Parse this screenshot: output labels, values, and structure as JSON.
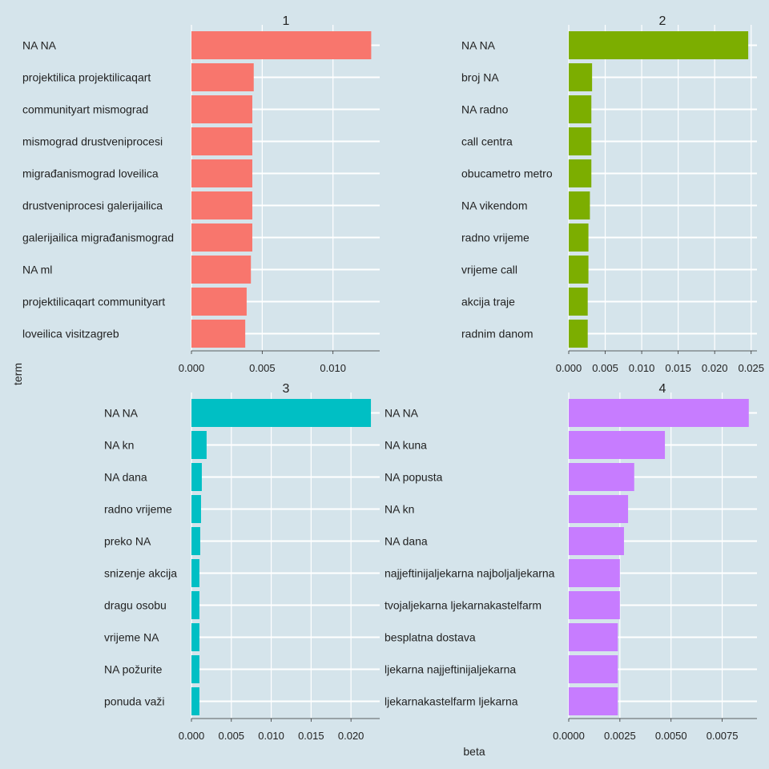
{
  "figure": {
    "xlabel": "beta",
    "ylabel": "term",
    "background": "#d5e4eb",
    "grid_color": "#ffffff"
  },
  "chart_data": [
    {
      "type": "bar",
      "orientation": "horizontal",
      "title": "1",
      "color": "#f8766d",
      "xlim": [
        0,
        0.0133
      ],
      "xticks": [
        0,
        0.005,
        0.01
      ],
      "xtick_labels": [
        "0.000",
        "0.005",
        "0.010"
      ],
      "categories": [
        "NA NA",
        "projektilica projektilicaqart",
        "communityart mismograd",
        "mismograd drustveniprocesi",
        "migrađanismograd loveilica",
        "drustveniprocesi galerijailica",
        "galerijailica migrađanismograd",
        "NA ml",
        "projektilicaqart communityart",
        "loveilica visitzagreb"
      ],
      "values": [
        0.0127,
        0.0044,
        0.0043,
        0.0043,
        0.0043,
        0.0043,
        0.0043,
        0.0042,
        0.0039,
        0.0038
      ]
    },
    {
      "type": "bar",
      "orientation": "horizontal",
      "title": "2",
      "color": "#7cae00",
      "xlim": [
        0,
        0.0258
      ],
      "xticks": [
        0,
        0.005,
        0.01,
        0.015,
        0.02,
        0.025
      ],
      "xtick_labels": [
        "0.000",
        "0.005",
        "0.010",
        "0.015",
        "0.020",
        "0.025"
      ],
      "categories": [
        "NA NA",
        "broj NA",
        "NA radno",
        "call centra",
        "obucametro metro",
        "NA vikendom",
        "radno vrijeme",
        "vrijeme call",
        "akcija traje",
        "radnim danom"
      ],
      "values": [
        0.0246,
        0.0032,
        0.0031,
        0.0031,
        0.0031,
        0.0029,
        0.0027,
        0.0027,
        0.0026,
        0.0026
      ]
    },
    {
      "type": "bar",
      "orientation": "horizontal",
      "title": "3",
      "color": "#00bfc4",
      "xlim": [
        0,
        0.0236
      ],
      "xticks": [
        0,
        0.005,
        0.01,
        0.015,
        0.02
      ],
      "xtick_labels": [
        "0.000",
        "0.005",
        "0.010",
        "0.015",
        "0.020"
      ],
      "categories": [
        "NA NA",
        "NA kn",
        "NA dana",
        "radno vrijeme",
        "preko NA",
        "snizenje akcija",
        "dragu osobu",
        "vrijeme NA",
        "NA požurite",
        "ponuda važi"
      ],
      "values": [
        0.0225,
        0.0019,
        0.0013,
        0.0012,
        0.0011,
        0.001,
        0.001,
        0.001,
        0.001,
        0.001
      ]
    },
    {
      "type": "bar",
      "orientation": "horizontal",
      "title": "4",
      "color": "#c77cff",
      "xlim": [
        0,
        0.0092
      ],
      "xticks": [
        0,
        0.0025,
        0.005,
        0.0075
      ],
      "xtick_labels": [
        "0.0000",
        "0.0025",
        "0.0050",
        "0.0075"
      ],
      "categories": [
        "NA NA",
        "NA kuna",
        "NA popusta",
        "NA kn",
        "NA dana",
        "najjeftinijaljekarna najboljaljekarna",
        "tvojaljekarna ljekarnakastelfarm",
        "besplatna dostava",
        "ljekarna najjeftinijaljekarna",
        "ljekarnakastelfarm ljekarna"
      ],
      "values": [
        0.0088,
        0.0047,
        0.0032,
        0.0029,
        0.0027,
        0.0025,
        0.0025,
        0.0024,
        0.0024,
        0.0024
      ]
    }
  ]
}
